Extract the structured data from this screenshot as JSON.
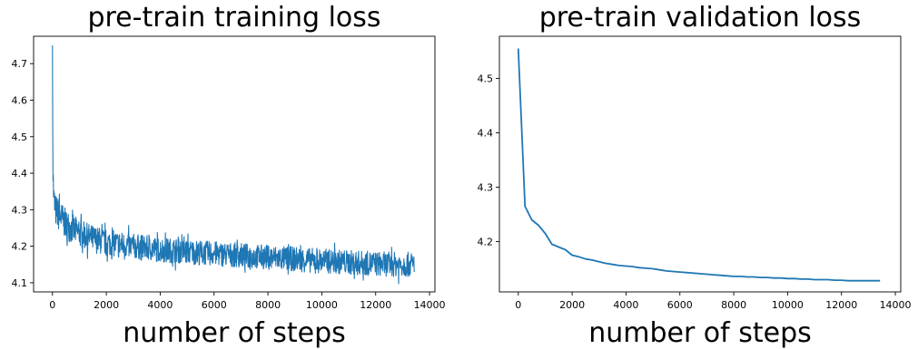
{
  "chart_data": [
    {
      "type": "line",
      "title": "pre-train training loss",
      "xlabel": "number of steps",
      "ylabel": "",
      "xlim": [
        -700,
        14200
      ],
      "ylim": [
        4.075,
        4.775
      ],
      "xticks": [
        0,
        2000,
        4000,
        6000,
        8000,
        10000,
        12000,
        14000
      ],
      "xtick_labels": [
        "0",
        "2000",
        "4000",
        "6000",
        "8000",
        "10000",
        "12000",
        "14000"
      ],
      "yticks": [
        4.1,
        4.2,
        4.3,
        4.4,
        4.5,
        4.6,
        4.7
      ],
      "ytick_labels": [
        "4.1",
        "4.2",
        "4.3",
        "4.4",
        "4.5",
        "4.6",
        "4.7"
      ],
      "grid": false,
      "color": "#1f77b4",
      "series": [
        {
          "x": [
            0,
            20,
            50,
            100,
            200,
            300,
            500,
            700,
            1000,
            1500,
            2000,
            2500,
            3000,
            3500,
            4000,
            4500,
            5000,
            5500,
            6000,
            6500,
            7000,
            7500,
            8000,
            8500,
            9000,
            9500,
            10000,
            10500,
            11000,
            11500,
            12000,
            12500,
            13000,
            13430
          ],
          "y": [
            4.75,
            4.4,
            4.33,
            4.3,
            4.29,
            4.28,
            4.26,
            4.25,
            4.235,
            4.22,
            4.21,
            4.205,
            4.2,
            4.195,
            4.19,
            4.188,
            4.185,
            4.182,
            4.18,
            4.177,
            4.175,
            4.172,
            4.17,
            4.167,
            4.165,
            4.162,
            4.16,
            4.158,
            4.156,
            4.154,
            4.152,
            4.151,
            4.15,
            4.15
          ],
          "band": [
            0.05,
            0.06,
            0.06,
            0.06,
            0.06,
            0.06,
            0.055,
            0.055,
            0.05,
            0.05,
            0.048,
            0.048,
            0.046,
            0.046,
            0.045,
            0.045,
            0.045,
            0.045,
            0.045,
            0.045,
            0.045,
            0.045,
            0.045,
            0.045,
            0.045,
            0.045,
            0.045,
            0.045,
            0.045,
            0.045,
            0.045,
            0.045,
            0.045,
            0.045
          ]
        }
      ]
    },
    {
      "type": "line",
      "title": "pre-train validation loss",
      "xlabel": "number of steps",
      "ylabel": "",
      "xlim": [
        -700,
        14200
      ],
      "ylim": [
        4.1075,
        4.5775
      ],
      "xticks": [
        0,
        2000,
        4000,
        6000,
        8000,
        10000,
        12000,
        14000
      ],
      "xtick_labels": [
        "0",
        "2000",
        "4000",
        "6000",
        "8000",
        "10000",
        "12000",
        "14000"
      ],
      "yticks": [
        4.2,
        4.3,
        4.4,
        4.5
      ],
      "ytick_labels": [
        "4.2",
        "4.3",
        "4.4",
        "4.5"
      ],
      "grid": false,
      "color": "#1f77b4",
      "series": [
        {
          "x": [
            0,
            250,
            500,
            750,
            1000,
            1250,
            1500,
            1750,
            2000,
            2250,
            2500,
            2750,
            3000,
            3250,
            3500,
            3750,
            4000,
            4250,
            4500,
            4750,
            5000,
            5250,
            5500,
            5750,
            6000,
            6250,
            6500,
            6750,
            7000,
            7250,
            7500,
            7750,
            8000,
            8250,
            8500,
            8750,
            9000,
            9250,
            9500,
            9750,
            10000,
            10250,
            10500,
            10750,
            11000,
            11250,
            11500,
            11750,
            12000,
            12250,
            12500,
            12750,
            13000,
            13430
          ],
          "y": [
            4.555,
            4.265,
            4.24,
            4.23,
            4.215,
            4.195,
            4.19,
            4.185,
            4.175,
            4.172,
            4.168,
            4.166,
            4.163,
            4.16,
            4.158,
            4.156,
            4.155,
            4.154,
            4.152,
            4.151,
            4.15,
            4.148,
            4.146,
            4.145,
            4.144,
            4.143,
            4.142,
            4.141,
            4.14,
            4.139,
            4.138,
            4.137,
            4.136,
            4.136,
            4.135,
            4.135,
            4.134,
            4.134,
            4.133,
            4.133,
            4.132,
            4.132,
            4.131,
            4.131,
            4.13,
            4.13,
            4.13,
            4.129,
            4.129,
            4.128,
            4.128,
            4.128,
            4.128,
            4.128
          ]
        }
      ]
    }
  ]
}
